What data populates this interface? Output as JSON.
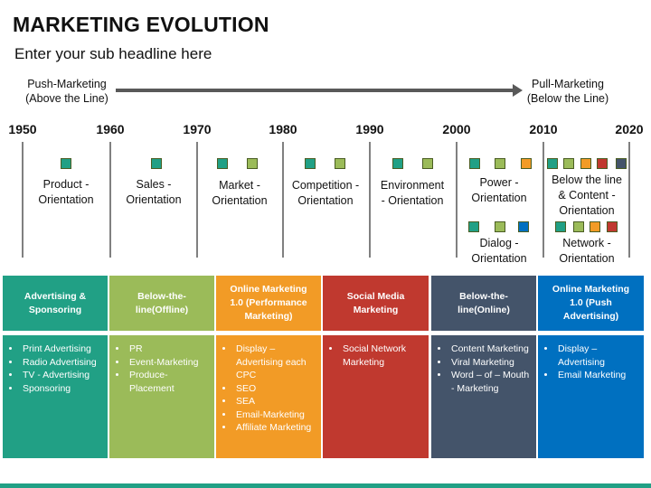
{
  "title": "MARKETING EVOLUTION",
  "subtitle": "Enter your sub headline here",
  "arrow": {
    "left": [
      "Push-Marketing",
      "(Above the Line)"
    ],
    "right": [
      "Pull-Marketing",
      "(Below the Line)"
    ]
  },
  "years": [
    "1950",
    "1960",
    "1970",
    "1980",
    "1990",
    "2000",
    "2010",
    "2020"
  ],
  "colors": {
    "teal": "#21a085",
    "green": "#9bbb59",
    "orange": "#f29b26",
    "red": "#c0392f",
    "slate": "#44546a",
    "blue": "#0070c0"
  },
  "stages": [
    {
      "label": [
        "Product -",
        "Orientation"
      ],
      "squares": [
        "teal"
      ]
    },
    {
      "label": [
        "Sales -",
        "Orientation"
      ],
      "squares": [
        "teal"
      ]
    },
    {
      "label": [
        "Market -",
        "Orientation"
      ],
      "squares": [
        "teal",
        "green"
      ]
    },
    {
      "label": [
        "Competition -",
        "Orientation"
      ],
      "squares": [
        "teal",
        "green"
      ]
    },
    {
      "label": [
        "Environment",
        "- Orientation"
      ],
      "squares": [
        "teal",
        "green"
      ]
    },
    {
      "label": [
        "Power -",
        "Orientation"
      ],
      "squares": [
        "teal",
        "green",
        "orange"
      ]
    },
    {
      "label": [
        "Below the line",
        "& Content -",
        "Orientation"
      ],
      "squares": [
        "teal",
        "green",
        "orange",
        "red",
        "slate"
      ]
    },
    {
      "label": [
        "Dialog -",
        "Orientation"
      ],
      "squares": [
        "teal",
        "green",
        "blue"
      ]
    },
    {
      "label": [
        "Network -",
        "Orientation"
      ],
      "squares": [
        "teal",
        "green",
        "orange",
        "red"
      ]
    }
  ],
  "columns": [
    {
      "header": "Advertising & Sponsoring",
      "color": "#21a085",
      "items": [
        "Print Advertising",
        "Radio Advertising",
        "TV - Advertising",
        "Sponsoring"
      ]
    },
    {
      "header": "Below-the-line(Offline)",
      "color": "#9bbb59",
      "items": [
        "PR",
        "Event-Marketing",
        "Produce-Placement"
      ]
    },
    {
      "header": "Online Marketing 1.0 (Performance Marketing)",
      "color": "#f29b26",
      "items": [
        "Display – Advertising each CPC",
        "SEO",
        "SEA",
        "Email-Marketing",
        "Affiliate Marketing"
      ]
    },
    {
      "header": "Social Media Marketing",
      "color": "#c0392f",
      "items": [
        "Social Network Marketing"
      ]
    },
    {
      "header": "Below-the-line(Online)",
      "color": "#44546a",
      "items": [
        "Content Marketing",
        "Viral Marketing",
        "Word – of – Mouth - Marketing"
      ]
    },
    {
      "header": "Online Marketing 1.0 (Push Advertising)",
      "color": "#0070c0",
      "items": [
        "Display – Advertising",
        "Email Marketing"
      ]
    }
  ]
}
